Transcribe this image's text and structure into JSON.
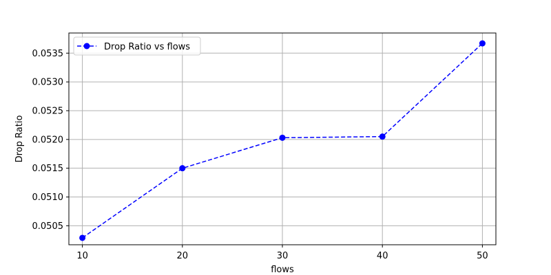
{
  "chart_data": {
    "type": "line",
    "title": "",
    "xlabel": "flows",
    "ylabel": "Drop Ratio",
    "x": [
      10,
      20,
      30,
      40,
      50
    ],
    "series": [
      {
        "name": "Drop Ratio vs flows",
        "values": [
          0.05029,
          0.0515,
          0.05203,
          0.05205,
          0.05367
        ]
      }
    ],
    "xlim": [
      8.65,
      51.35
    ],
    "ylim": [
      0.05017,
      0.05385
    ],
    "xticks": [
      10,
      20,
      30,
      40,
      50
    ],
    "xtick_labels": [
      "10",
      "20",
      "30",
      "40",
      "50"
    ],
    "yticks": [
      0.0505,
      0.051,
      0.0515,
      0.052,
      0.0525,
      0.053,
      0.0535
    ],
    "ytick_labels": [
      "0.0505",
      "0.0510",
      "0.0515",
      "0.0520",
      "0.0525",
      "0.0530",
      "0.0535"
    ],
    "grid": true,
    "legend": "top-left",
    "line_style": "dashed",
    "marker": "circle",
    "colors": {
      "series": "#0000ff",
      "grid": "#b0b0b0",
      "axes": "#000000",
      "legend_border": "#cccccc"
    }
  }
}
